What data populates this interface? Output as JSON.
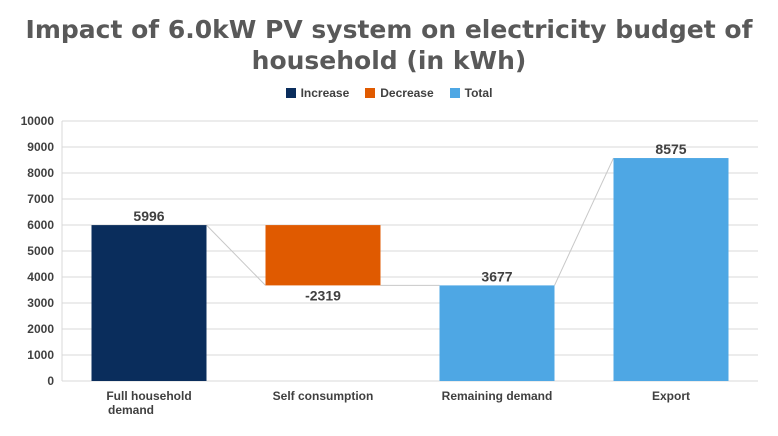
{
  "title_lines": [
    "Impact of 6.0kW PV system on electricity budget of",
    "household (in kWh)"
  ],
  "legend": [
    {
      "label": "Increase",
      "color": "#0a2d5c"
    },
    {
      "label": "Decrease",
      "color": "#e05a00"
    },
    {
      "label": "Total",
      "color": "#4ea7e4"
    }
  ],
  "chart_data": {
    "type": "bar",
    "subtype": "waterfall",
    "title": "Impact of 6.0kW PV system on electricity budget of household (in kWh)",
    "categories": [
      [
        "Full household",
        "demand"
      ],
      [
        "Self consumption"
      ],
      [
        "Remaining demand"
      ],
      [
        "Export"
      ]
    ],
    "bars": [
      {
        "kind": "Increase",
        "start": 0,
        "end": 5996,
        "label": "5996"
      },
      {
        "kind": "Decrease",
        "start": 5996,
        "end": 3677,
        "label": "-2319"
      },
      {
        "kind": "Total",
        "start": 0,
        "end": 3677,
        "label": "3677"
      },
      {
        "kind": "Total",
        "start": 0,
        "end": 8575,
        "label": "8575"
      }
    ],
    "ylim": [
      0,
      10000
    ],
    "yticks": [
      0,
      1000,
      2000,
      3000,
      4000,
      5000,
      6000,
      7000,
      8000,
      9000,
      10000
    ],
    "grid": true,
    "legend_position": "top"
  }
}
